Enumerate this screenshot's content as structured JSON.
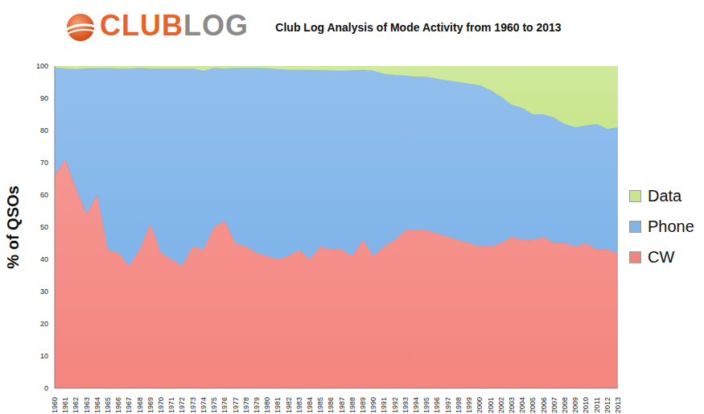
{
  "chart_data": {
    "type": "area",
    "stacked": true,
    "title": "Club Log Analysis of Mode Activity from 1960 to 2013",
    "logo": [
      "CLUB",
      "LOG"
    ],
    "y_label": "% of QSOs",
    "legend": "right",
    "grid": false,
    "categories": [
      "1960",
      "1961",
      "1962",
      "1963",
      "1964",
      "1965",
      "1966",
      "1967",
      "1968",
      "1969",
      "1970",
      "1971",
      "1972",
      "1973",
      "1974",
      "1975",
      "1976",
      "1977",
      "1978",
      "1979",
      "1980",
      "1981",
      "1982",
      "1983",
      "1984",
      "1985",
      "1986",
      "1987",
      "1988",
      "1989",
      "1990",
      "1991",
      "1992",
      "1993",
      "1994",
      "1995",
      "1996",
      "1997",
      "1998",
      "1999",
      "2000",
      "2001",
      "2002",
      "2003",
      "2004",
      "2005",
      "2006",
      "2007",
      "2008",
      "2009",
      "2010",
      "2011",
      "2012",
      "2013"
    ],
    "series": [
      {
        "name": "CW",
        "color": "#f4847e",
        "values": [
          66,
          71,
          62,
          54,
          60,
          43,
          42,
          38,
          43,
          51,
          42,
          40,
          38,
          44,
          43,
          50,
          52,
          45,
          44,
          42,
          41,
          40,
          41,
          43,
          40,
          44,
          43,
          43,
          41,
          46,
          41,
          44,
          46,
          49,
          49,
          49,
          48,
          47,
          46,
          45,
          44,
          44,
          45,
          47,
          46,
          46,
          47,
          45,
          45,
          44,
          45,
          43,
          43,
          42
        ]
      },
      {
        "name": "Phone",
        "color": "#7fb4ea",
        "values": [
          33.5,
          28.2,
          37,
          45.3,
          39.3,
          56.3,
          57.2,
          61.2,
          56.4,
          48.2,
          57.2,
          59.2,
          61.2,
          55.2,
          55.5,
          49.4,
          47.2,
          54.4,
          55.4,
          57.4,
          58.3,
          59,
          57.8,
          55.8,
          58.8,
          54.7,
          55.6,
          55.5,
          57.7,
          52.8,
          57.5,
          53.5,
          51.2,
          48,
          47.7,
          47.7,
          48,
          48.5,
          49,
          49.5,
          50,
          48.5,
          45.5,
          41,
          41,
          39,
          38,
          39,
          37,
          37,
          36.5,
          39,
          37.5,
          39
        ]
      },
      {
        "name": "Data",
        "color": "#c8e68c",
        "values": [
          0.5,
          0.8,
          1,
          0.7,
          0.7,
          0.7,
          0.8,
          0.8,
          0.6,
          0.8,
          0.8,
          0.8,
          0.8,
          0.8,
          1.5,
          0.6,
          0.8,
          0.6,
          0.6,
          0.6,
          0.7,
          1,
          1.2,
          1.2,
          1.2,
          1.3,
          1.4,
          1.5,
          1.3,
          1.2,
          1.5,
          2.5,
          2.8,
          3,
          3.3,
          3.3,
          4,
          4.5,
          5,
          5.5,
          6,
          7.5,
          9.5,
          12,
          13,
          15,
          15,
          16,
          18,
          19,
          18.5,
          18,
          19.5,
          19
        ]
      }
    ],
    "ylim": [
      0,
      100
    ],
    "yticks": [
      0,
      10,
      20,
      30,
      40,
      50,
      60,
      70,
      80,
      90,
      100
    ]
  }
}
